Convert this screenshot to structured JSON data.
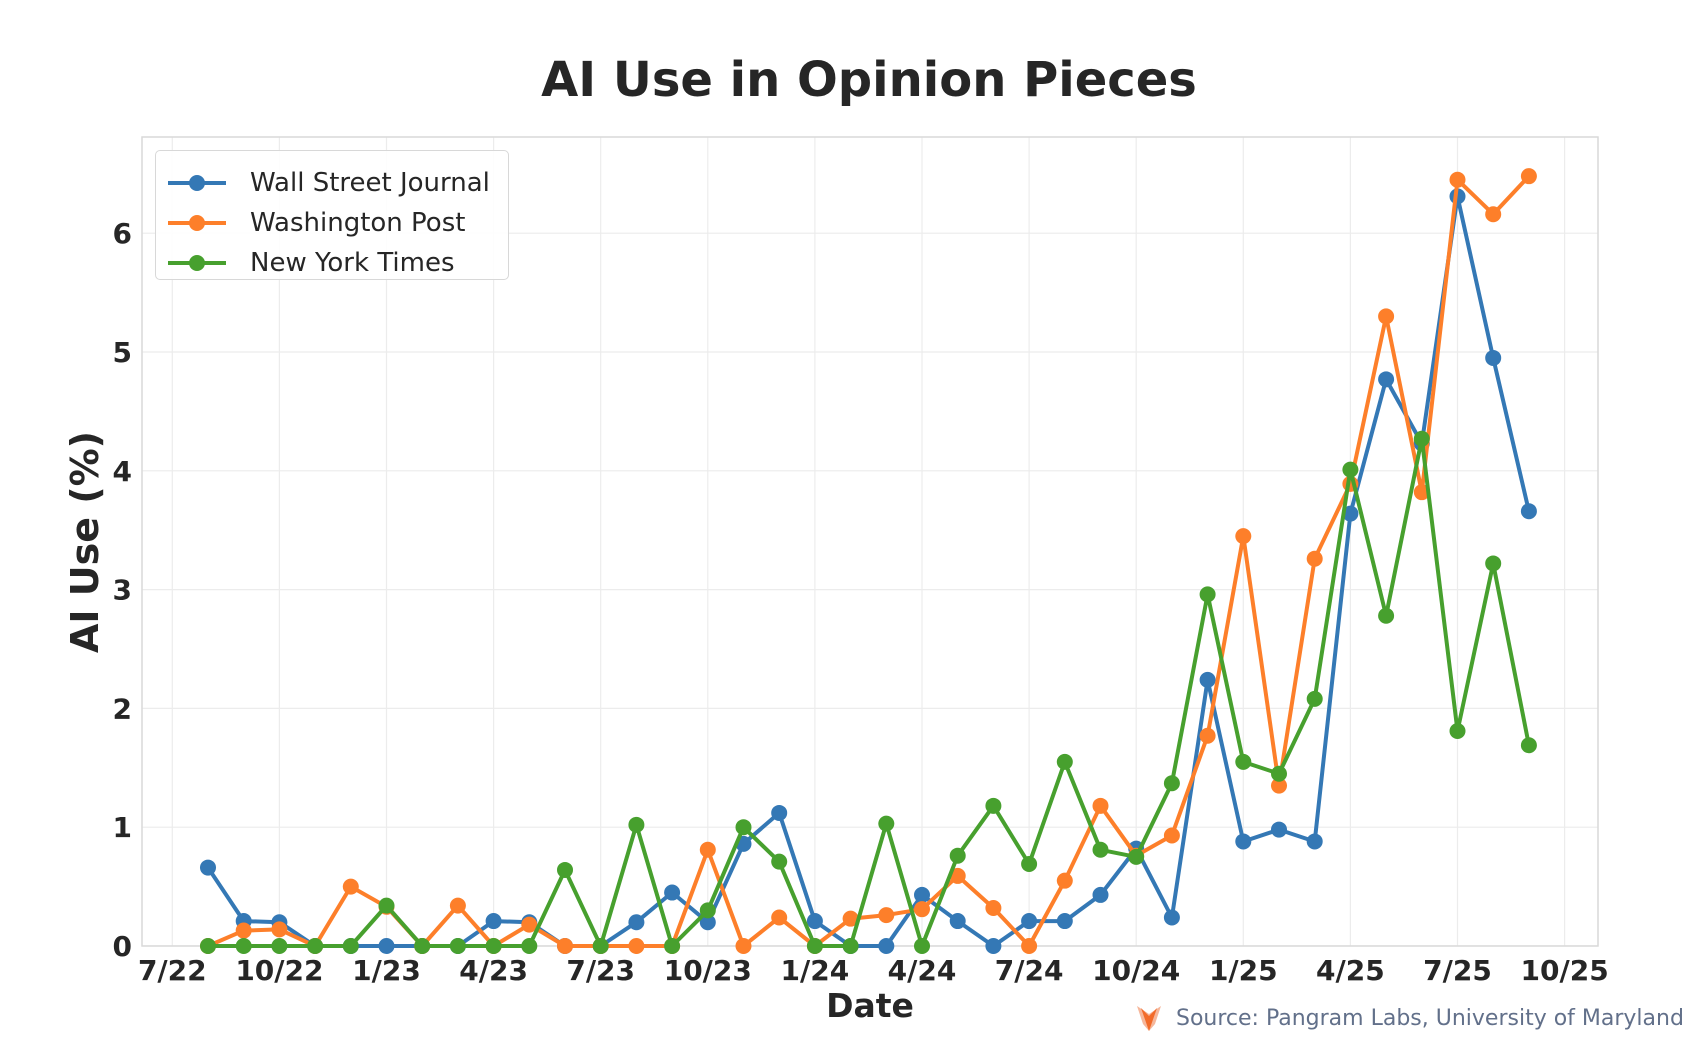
{
  "title": "AI Use in Opinion Pieces",
  "source": {
    "icon": "pangram-fox-logo-icon",
    "text": "Source: Pangram Labs, University of Maryland"
  },
  "colors": {
    "wsj": "#3478b5",
    "wapo": "#fd7f2a",
    "nyt": "#47a02e",
    "grid": "#ececec",
    "axis_text": "#262626",
    "source_text": "#62708a"
  },
  "chart_data": {
    "type": "line",
    "title": "AI Use in Opinion Pieces",
    "xlabel": "Date",
    "ylabel": "AI Use (%)",
    "ylim": [
      0,
      6.8
    ],
    "yticks": [
      0,
      1,
      2,
      3,
      4,
      5,
      6
    ],
    "xtick_labels": [
      "7/22",
      "10/22",
      "1/23",
      "4/23",
      "7/23",
      "10/23",
      "1/24",
      "4/24",
      "7/24",
      "10/24",
      "1/25",
      "4/25",
      "7/25",
      "10/25"
    ],
    "grid": true,
    "legend_position": "upper left",
    "x": [
      "8/22",
      "9/22",
      "10/22",
      "11/22",
      "12/22",
      "1/23",
      "2/23",
      "3/23",
      "4/23",
      "5/23",
      "6/23",
      "7/23",
      "8/23",
      "9/23",
      "10/23",
      "11/23",
      "12/23",
      "1/24",
      "2/24",
      "3/24",
      "4/24",
      "5/24",
      "6/24",
      "7/24",
      "8/24",
      "9/24",
      "10/24",
      "11/24",
      "12/24",
      "1/25",
      "2/25",
      "3/25",
      "4/25",
      "5/25",
      "6/25",
      "7/25",
      "8/25",
      "9/25"
    ],
    "series": [
      {
        "name": "Wall Street Journal",
        "color": "#3478b5",
        "values": [
          0.66,
          0.21,
          0.2,
          0.0,
          0.0,
          0.0,
          0.0,
          0.0,
          0.21,
          0.2,
          0.0,
          0.0,
          0.2,
          0.45,
          0.2,
          0.86,
          1.12,
          0.21,
          0.0,
          0.0,
          0.43,
          0.21,
          0.0,
          0.21,
          0.21,
          0.43,
          0.82,
          0.24,
          2.24,
          0.88,
          0.98,
          0.88,
          3.64,
          4.77,
          4.23,
          6.31,
          4.95,
          3.66
        ]
      },
      {
        "name": "Washington Post",
        "color": "#fd7f2a",
        "values": [
          0.0,
          0.13,
          0.14,
          0.0,
          0.5,
          0.33,
          0.0,
          0.34,
          0.0,
          0.18,
          0.0,
          0.0,
          0.0,
          0.0,
          0.81,
          0.0,
          0.24,
          0.0,
          0.23,
          0.26,
          0.31,
          0.59,
          0.32,
          0.0,
          0.55,
          1.18,
          0.76,
          0.93,
          1.77,
          3.45,
          1.35,
          3.26,
          3.89,
          5.3,
          3.82,
          6.45,
          6.16,
          6.48
        ]
      },
      {
        "name": "New York Times",
        "color": "#47a02e",
        "values": [
          0.0,
          0.0,
          0.0,
          0.0,
          0.0,
          0.34,
          0.0,
          0.0,
          0.0,
          0.0,
          0.64,
          0.0,
          1.02,
          0.0,
          0.3,
          1.0,
          0.71,
          0.0,
          0.0,
          1.03,
          0.0,
          0.76,
          1.18,
          0.69,
          1.55,
          0.81,
          0.75,
          1.37,
          2.96,
          1.55,
          1.45,
          2.08,
          4.01,
          2.78,
          4.27,
          1.81,
          3.22,
          1.69
        ]
      }
    ]
  }
}
